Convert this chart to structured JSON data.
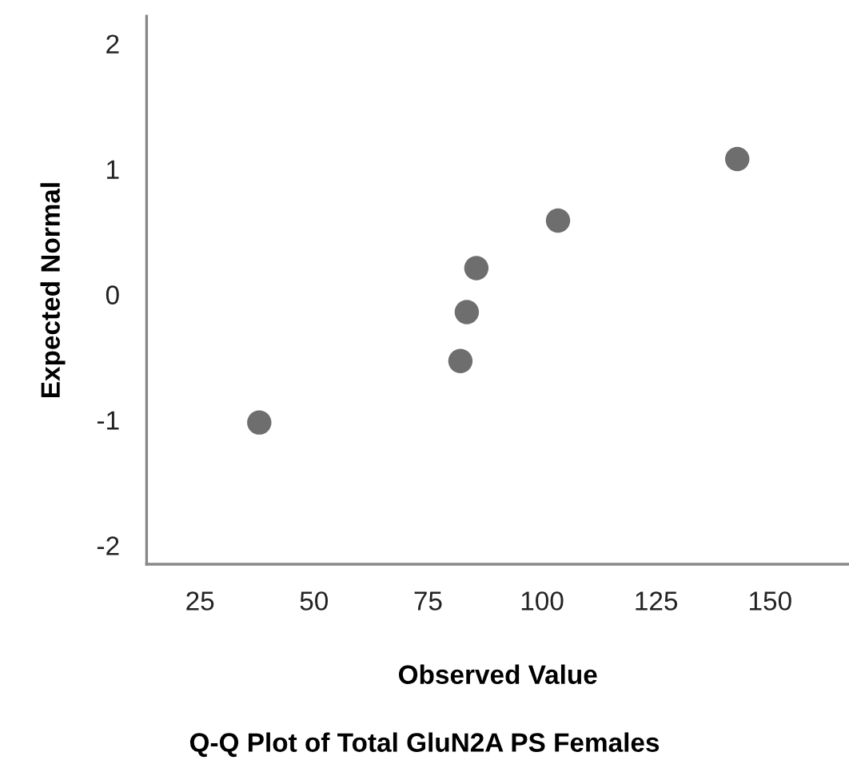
{
  "chart_data": {
    "type": "scatter",
    "title": "Q-Q Plot of Total GluN2A PS Females",
    "xlabel": "Observed Value",
    "ylabel": "Expected Normal",
    "x": [
      38.0,
      82.1,
      83.5,
      85.6,
      103.5,
      142.8
    ],
    "values": [
      -1.02,
      -0.53,
      -0.14,
      0.21,
      0.59,
      1.08
    ],
    "color": "#6e6e6e",
    "marker": "circle",
    "grid": false,
    "xlim": [
      13.3,
      167.3
    ],
    "xticks": [
      25,
      50,
      75,
      100,
      125,
      150
    ],
    "ylim": [
      -2.15,
      2.22
    ],
    "yticks": [
      -2,
      -1,
      0,
      1,
      2
    ]
  }
}
